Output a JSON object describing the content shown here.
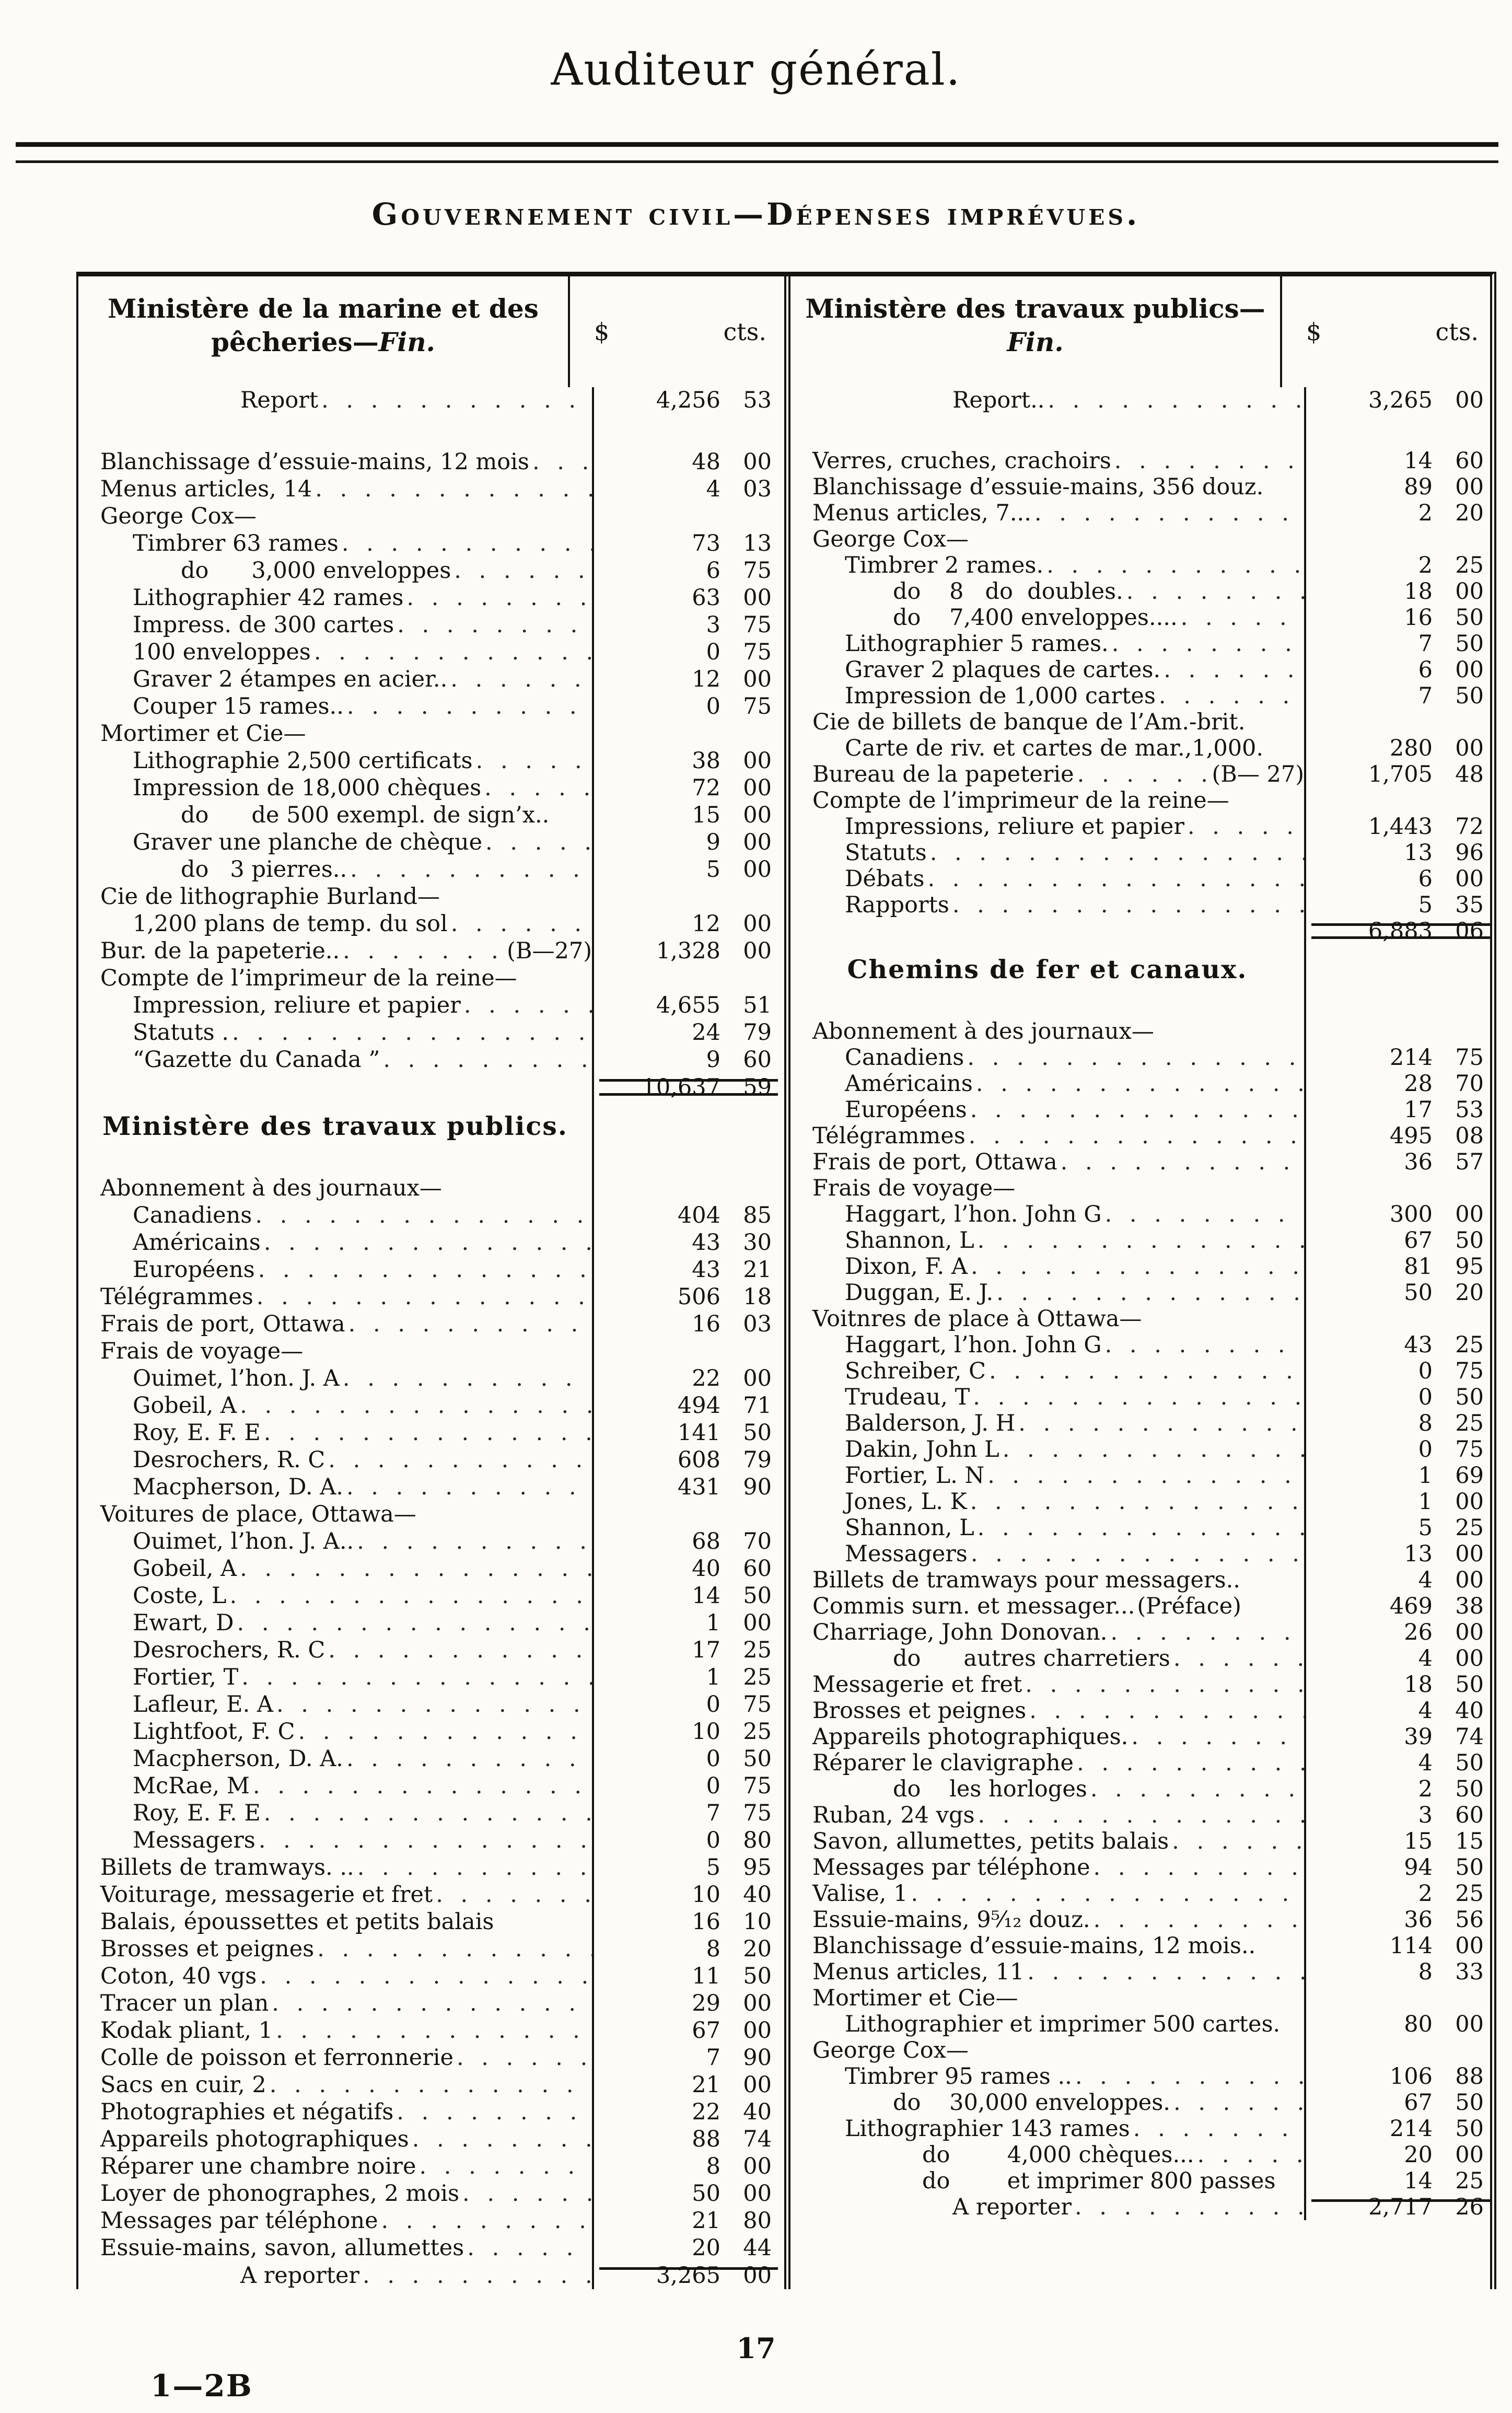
{
  "page": {
    "title": "Auditeur général.",
    "subtitle": "Gouvernement civil—Dépenses imprévues.",
    "page_number": "17",
    "footer_signature": "1—2B"
  },
  "amount_header": {
    "dollar": "$",
    "cents": "cts."
  },
  "columns": [
    {
      "header": {
        "line1": "Ministère de la marine et des",
        "line2": "pêcheries—",
        "fin": "Fin."
      },
      "rows": [
        {
          "t": "i",
          "n": 9,
          "l": "Report",
          "d": "4,256",
          "c": "53"
        },
        {
          "t": "sp",
          "h": 66
        },
        {
          "t": "i",
          "l": "Blanchissage d’essuie-mains, 12 mois",
          "d": "48",
          "c": "00"
        },
        {
          "t": "i",
          "l": "Menus articles, 14",
          "d": "4",
          "c": "03"
        },
        {
          "t": "g",
          "l": "George Cox—"
        },
        {
          "t": "i",
          "n": 1,
          "l": "Timbrer 63 rames",
          "d": "73",
          "c": "13"
        },
        {
          "t": "i",
          "n": 2,
          "l": "do      3,000 enveloppes",
          "d": "6",
          "c": "75"
        },
        {
          "t": "i",
          "n": 1,
          "l": "Lithographier 42 rames",
          "d": "63",
          "c": "00"
        },
        {
          "t": "i",
          "n": 1,
          "l": "Impress. de 300 cartes",
          "d": "3",
          "c": "75"
        },
        {
          "t": "i",
          "n": 1,
          "l": "100 enveloppes",
          "d": "0",
          "c": "75"
        },
        {
          "t": "i",
          "n": 1,
          "l": "Graver 2 étampes en acier..",
          "d": "12",
          "c": "00"
        },
        {
          "t": "i",
          "n": 1,
          "l": "Couper 15 rames..",
          "d": "0",
          "c": "75"
        },
        {
          "t": "g",
          "l": "Mortimer et Cie—"
        },
        {
          "t": "i",
          "n": 1,
          "l": "Lithographie 2,500 certificats",
          "d": "38",
          "c": "00"
        },
        {
          "t": "i",
          "n": 1,
          "l": "Impression de 18,000 chèques",
          "d": "72",
          "c": "00"
        },
        {
          "t": "i",
          "n": 2,
          "l": "do      de 500 exempl. de sign’x..",
          "d": "15",
          "c": "00",
          "nl": 1
        },
        {
          "t": "i",
          "n": 1,
          "l": "Graver une planche de chèque",
          "d": "9",
          "c": "00"
        },
        {
          "t": "i",
          "n": 2,
          "l": "do   3 pierres..",
          "d": "5",
          "c": "00"
        },
        {
          "t": "g",
          "l": "Cie de lithographie Burland—"
        },
        {
          "t": "i",
          "n": 1,
          "l": "1,200 plans de temp. du sol",
          "d": "12",
          "c": "00"
        },
        {
          "t": "i",
          "l": "Bur. de la papeterie..",
          "s": "(B—27)",
          "d": "1,328",
          "c": "00"
        },
        {
          "t": "g",
          "l": "Compte de l’imprimeur de la reine—"
        },
        {
          "t": "i",
          "n": 1,
          "l": "Impression, reliure et papier",
          "d": "4,655",
          "c": "51"
        },
        {
          "t": "i",
          "n": 1,
          "l": "Statuts .",
          "d": "24",
          "c": "79"
        },
        {
          "t": "i",
          "n": 1,
          "l": "“Gazette du Canada ”",
          "d": "9",
          "c": "60"
        },
        {
          "t": "t",
          "d": "10,637",
          "c": "59",
          "r": 1,
          "rb": 1
        },
        {
          "t": "s",
          "l": "Ministère des travaux publics."
        },
        {
          "t": "sp",
          "h": 46
        },
        {
          "t": "g",
          "l": "Abonnement à des journaux—"
        },
        {
          "t": "i",
          "n": 1,
          "l": "Canadiens",
          "d": "404",
          "c": "85"
        },
        {
          "t": "i",
          "n": 1,
          "l": "Américains",
          "d": "43",
          "c": "30"
        },
        {
          "t": "i",
          "n": 1,
          "l": "Européens",
          "d": "43",
          "c": "21"
        },
        {
          "t": "i",
          "l": "Télégrammes",
          "d": "506",
          "c": "18"
        },
        {
          "t": "i",
          "l": "Frais de port, Ottawa",
          "d": "16",
          "c": "03"
        },
        {
          "t": "g",
          "l": "Frais de voyage—"
        },
        {
          "t": "i",
          "n": 1,
          "l": "Ouimet, l’hon. J. A",
          "d": "22",
          "c": "00"
        },
        {
          "t": "i",
          "n": 1,
          "l": "Gobeil, A",
          "d": "494",
          "c": "71"
        },
        {
          "t": "i",
          "n": 1,
          "l": "Roy, E. F. E",
          "d": "141",
          "c": "50"
        },
        {
          "t": "i",
          "n": 1,
          "l": "Desrochers, R. C",
          "d": "608",
          "c": "79"
        },
        {
          "t": "i",
          "n": 1,
          "l": "Macpherson, D. A.",
          "d": "431",
          "c": "90"
        },
        {
          "t": "g",
          "l": "Voitures de place, Ottawa—"
        },
        {
          "t": "i",
          "n": 1,
          "l": "Ouimet, l’hon. J. A..",
          "d": "68",
          "c": "70"
        },
        {
          "t": "i",
          "n": 1,
          "l": "Gobeil, A",
          "d": "40",
          "c": "60"
        },
        {
          "t": "i",
          "n": 1,
          "l": "Coste, L",
          "d": "14",
          "c": "50"
        },
        {
          "t": "i",
          "n": 1,
          "l": "Ewart, D",
          "d": "1",
          "c": "00"
        },
        {
          "t": "i",
          "n": 1,
          "l": "Desrochers, R. C",
          "d": "17",
          "c": "25"
        },
        {
          "t": "i",
          "n": 1,
          "l": "Fortier, T",
          "d": "1",
          "c": "25"
        },
        {
          "t": "i",
          "n": 1,
          "l": "Lafleur, E. A",
          "d": "0",
          "c": "75"
        },
        {
          "t": "i",
          "n": 1,
          "l": "Lightfoot, F. C",
          "d": "10",
          "c": "25"
        },
        {
          "t": "i",
          "n": 1,
          "l": "Macpherson, D. A.",
          "d": "0",
          "c": "50"
        },
        {
          "t": "i",
          "n": 1,
          "l": "McRae, M",
          "d": "0",
          "c": "75"
        },
        {
          "t": "i",
          "n": 1,
          "l": "Roy, E. F. E",
          "d": "7",
          "c": "75"
        },
        {
          "t": "i",
          "n": 1,
          "l": "Messagers",
          "d": "0",
          "c": "80"
        },
        {
          "t": "i",
          "l": "Billets de tramways. ..",
          "d": "5",
          "c": "95"
        },
        {
          "t": "i",
          "l": "Voiturage, messagerie et fret",
          "d": "10",
          "c": "40"
        },
        {
          "t": "i",
          "l": "Balais, époussettes et petits balais",
          "d": "16",
          "c": "10",
          "nl": 1
        },
        {
          "t": "i",
          "l": "Brosses et peignes",
          "d": "8",
          "c": "20"
        },
        {
          "t": "i",
          "l": "Coton, 40 vgs",
          "d": "11",
          "c": "50"
        },
        {
          "t": "i",
          "l": "Tracer un plan",
          "d": "29",
          "c": "00"
        },
        {
          "t": "i",
          "l": "Kodak pliant, 1",
          "d": "67",
          "c": "00"
        },
        {
          "t": "i",
          "l": "Colle de poisson et ferronnerie",
          "d": "7",
          "c": "90"
        },
        {
          "t": "i",
          "l": "Sacs en cuir, 2",
          "d": "21",
          "c": "00"
        },
        {
          "t": "i",
          "l": "Photographies et négatifs",
          "d": "22",
          "c": "40"
        },
        {
          "t": "i",
          "l": "Appareils photographiques",
          "d": "88",
          "c": "74"
        },
        {
          "t": "i",
          "l": "Réparer une chambre noire",
          "d": "8",
          "c": "00"
        },
        {
          "t": "i",
          "l": "Loyer de phonographes, 2 mois",
          "d": "50",
          "c": "00"
        },
        {
          "t": "i",
          "l": "Messages par téléphone",
          "d": "21",
          "c": "80"
        },
        {
          "t": "i",
          "l": "Essuie-mains, savon, allumettes",
          "d": "20",
          "c": "44"
        },
        {
          "t": "a",
          "n": 9,
          "l": "A reporter",
          "d": "3,265",
          "c": "00",
          "r": 1
        }
      ]
    },
    {
      "header": {
        "line1": "Ministère des travaux publics—",
        "line2": "",
        "fin": "Fin."
      },
      "rows": [
        {
          "t": "i",
          "n": 9,
          "l": "Report..",
          "d": "3,265",
          "c": "00"
        },
        {
          "t": "sp",
          "h": 66
        },
        {
          "t": "i",
          "l": "Verres, cruches, crachoirs",
          "d": "14",
          "c": "60"
        },
        {
          "t": "i",
          "l": "Blanchissage d’essuie-mains, 356 douz.",
          "d": "89",
          "c": "00",
          "nl": 1
        },
        {
          "t": "i",
          "l": "Menus articles, 7...",
          "d": "2",
          "c": "20"
        },
        {
          "t": "g",
          "l": "George Cox—"
        },
        {
          "t": "i",
          "n": 1,
          "l": "Timbrer 2 rames.",
          "d": "2",
          "c": "25"
        },
        {
          "t": "i",
          "n": 2,
          "l": "do    8   do  doubles.",
          "d": "18",
          "c": "00"
        },
        {
          "t": "i",
          "n": 2,
          "l": "do    7,400 enveloppes....",
          "d": "16",
          "c": "50"
        },
        {
          "t": "i",
          "n": 1,
          "l": "Lithographier 5 rames.",
          "d": "7",
          "c": "50"
        },
        {
          "t": "i",
          "n": 1,
          "l": "Graver 2 plaques de cartes.",
          "d": "6",
          "c": "00"
        },
        {
          "t": "i",
          "n": 1,
          "l": "Impression de 1,000 cartes",
          "d": "7",
          "c": "50"
        },
        {
          "t": "g",
          "l": "Cie de billets de banque de l’Am.-brit."
        },
        {
          "t": "i",
          "n": 1,
          "l": "Carte de riv. et cartes de mar.,1,000.",
          "d": "280",
          "c": "00",
          "nl": 1
        },
        {
          "t": "i",
          "l": "Bureau de la papeterie",
          "s": "(B— 27)",
          "d": "1,705",
          "c": "48"
        },
        {
          "t": "g",
          "l": "Compte de l’imprimeur de la reine—"
        },
        {
          "t": "i",
          "n": 1,
          "l": "Impressions, reliure et papier",
          "d": "1,443",
          "c": "72"
        },
        {
          "t": "i",
          "n": 1,
          "l": "Statuts",
          "d": "13",
          "c": "96"
        },
        {
          "t": "i",
          "n": 1,
          "l": "Débats",
          "d": "6",
          "c": "00"
        },
        {
          "t": "i",
          "n": 1,
          "l": "Rapports",
          "d": "5",
          "c": "35"
        },
        {
          "t": "t",
          "d": "6,883",
          "c": "06",
          "r": 1,
          "rb": 1
        },
        {
          "t": "s",
          "l": "Chemins de fer et canaux."
        },
        {
          "t": "sp",
          "h": 46
        },
        {
          "t": "g",
          "l": "Abonnement à des journaux—"
        },
        {
          "t": "i",
          "n": 1,
          "l": "Canadiens",
          "d": "214",
          "c": "75"
        },
        {
          "t": "i",
          "n": 1,
          "l": "Américains",
          "d": "28",
          "c": "70"
        },
        {
          "t": "i",
          "n": 1,
          "l": "Européens",
          "d": "17",
          "c": "53"
        },
        {
          "t": "i",
          "l": "Télégrammes",
          "d": "495",
          "c": "08"
        },
        {
          "t": "i",
          "l": "Frais de port, Ottawa",
          "d": "36",
          "c": "57"
        },
        {
          "t": "g",
          "l": "Frais de voyage—"
        },
        {
          "t": "i",
          "n": 1,
          "l": "Haggart, l’hon. John G",
          "d": "300",
          "c": "00"
        },
        {
          "t": "i",
          "n": 1,
          "l": "Shannon, L",
          "d": "67",
          "c": "50"
        },
        {
          "t": "i",
          "n": 1,
          "l": "Dixon, F. A",
          "d": "81",
          "c": "95"
        },
        {
          "t": "i",
          "n": 1,
          "l": "Duggan, E. J.",
          "d": "50",
          "c": "20"
        },
        {
          "t": "g",
          "l": "Voitnres de place à Ottawa—"
        },
        {
          "t": "i",
          "n": 1,
          "l": "Haggart, l’hon. John G",
          "d": "43",
          "c": "25"
        },
        {
          "t": "i",
          "n": 1,
          "l": "Schreiber, C",
          "d": "0",
          "c": "75"
        },
        {
          "t": "i",
          "n": 1,
          "l": "Trudeau, T",
          "d": "0",
          "c": "50"
        },
        {
          "t": "i",
          "n": 1,
          "l": "Balderson, J. H",
          "d": "8",
          "c": "25"
        },
        {
          "t": "i",
          "n": 1,
          "l": "Dakin, John L",
          "d": "0",
          "c": "75"
        },
        {
          "t": "i",
          "n": 1,
          "l": "Fortier, L. N",
          "d": "1",
          "c": "69"
        },
        {
          "t": "i",
          "n": 1,
          "l": "Jones, L. K",
          "d": "1",
          "c": "00"
        },
        {
          "t": "i",
          "n": 1,
          "l": "Shannon, L",
          "d": "5",
          "c": "25"
        },
        {
          "t": "i",
          "n": 1,
          "l": "Messagers",
          "d": "13",
          "c": "00"
        },
        {
          "t": "i",
          "l": "Billets de tramways pour messagers..",
          "d": "4",
          "c": "00",
          "nl": 1
        },
        {
          "t": "i",
          "l": "Commis surn. et messager...",
          "s": "(Préface)",
          "d": "469",
          "c": "38",
          "nl": 1
        },
        {
          "t": "i",
          "l": "Charriage, John Donovan.",
          "d": "26",
          "c": "00"
        },
        {
          "t": "i",
          "n": 2,
          "l": "do      autres charretiers",
          "d": "4",
          "c": "00"
        },
        {
          "t": "i",
          "l": "Messagerie et fret",
          "d": "18",
          "c": "50"
        },
        {
          "t": "i",
          "l": "Brosses et peignes",
          "d": "4",
          "c": "40"
        },
        {
          "t": "i",
          "l": "Appareils photographiques.",
          "d": "39",
          "c": "74"
        },
        {
          "t": "i",
          "l": "Réparer le clavigraphe",
          "d": "4",
          "c": "50"
        },
        {
          "t": "i",
          "n": 2,
          "l": "do    les horloges",
          "d": "2",
          "c": "50"
        },
        {
          "t": "i",
          "l": "Ruban, 24 vgs",
          "d": "3",
          "c": "60"
        },
        {
          "t": "i",
          "l": "Savon, allumettes, petits balais",
          "d": "15",
          "c": "15"
        },
        {
          "t": "i",
          "l": "Messages par téléphone",
          "d": "94",
          "c": "50"
        },
        {
          "t": "i",
          "l": "Valise, 1",
          "d": "2",
          "c": "25"
        },
        {
          "t": "i",
          "l": "Essuie-mains, 9⁵⁄₁₂ douz.",
          "d": "36",
          "c": "56"
        },
        {
          "t": "i",
          "l": "Blanchissage d’essuie-mains, 12 mois..",
          "d": "114",
          "c": "00",
          "nl": 1
        },
        {
          "t": "i",
          "l": "Menus articles, 11",
          "d": "8",
          "c": "33"
        },
        {
          "t": "g",
          "l": "Mortimer et Cie—"
        },
        {
          "t": "i",
          "n": 1,
          "l": "Lithographier et imprimer 500 cartes.",
          "d": "80",
          "c": "00",
          "nl": 1
        },
        {
          "t": "g",
          "l": "George Cox—"
        },
        {
          "t": "i",
          "n": 1,
          "l": "Timbrer 95 rames ..",
          "d": "106",
          "c": "88"
        },
        {
          "t": "i",
          "n": 2,
          "l": "do    30,000 enveloppes.",
          "d": "67",
          "c": "50"
        },
        {
          "t": "i",
          "n": 1,
          "l": "Lithographier 143 rames",
          "d": "214",
          "c": "50"
        },
        {
          "t": "i",
          "n": 3,
          "l": "do        4,000 chèques...",
          "d": "20",
          "c": "00"
        },
        {
          "t": "i",
          "n": 3,
          "l": "do        et imprimer 800 passes",
          "d": "14",
          "c": "25",
          "nl": 1
        },
        {
          "t": "a",
          "n": 9,
          "l": "A reporter",
          "d": "2,717",
          "c": "26",
          "r": 1
        }
      ]
    }
  ]
}
